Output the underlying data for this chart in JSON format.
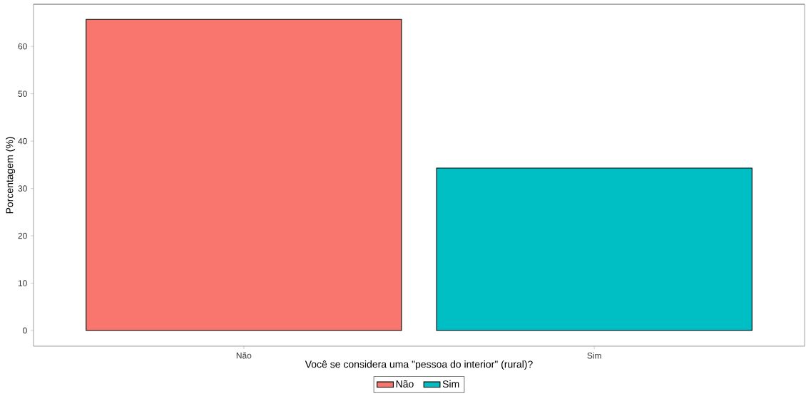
{
  "chart_data": {
    "type": "bar",
    "xlabel": "Você se considera uma \"pessoa do interior\" (rural)?",
    "ylabel": "Porcentagem (%)",
    "categories": [
      "Não",
      "Sim"
    ],
    "series": [
      {
        "name": "Não",
        "color": "#f8766d",
        "values": [
          65.7,
          null
        ]
      },
      {
        "name": "Sim",
        "color": "#00bfc4",
        "values": [
          null,
          34.3
        ]
      }
    ],
    "ylim": [
      -3.3,
      68.9
    ],
    "yticks": [
      0,
      10,
      20,
      30,
      40,
      50,
      60
    ],
    "legend": "bottom",
    "grid": false
  }
}
